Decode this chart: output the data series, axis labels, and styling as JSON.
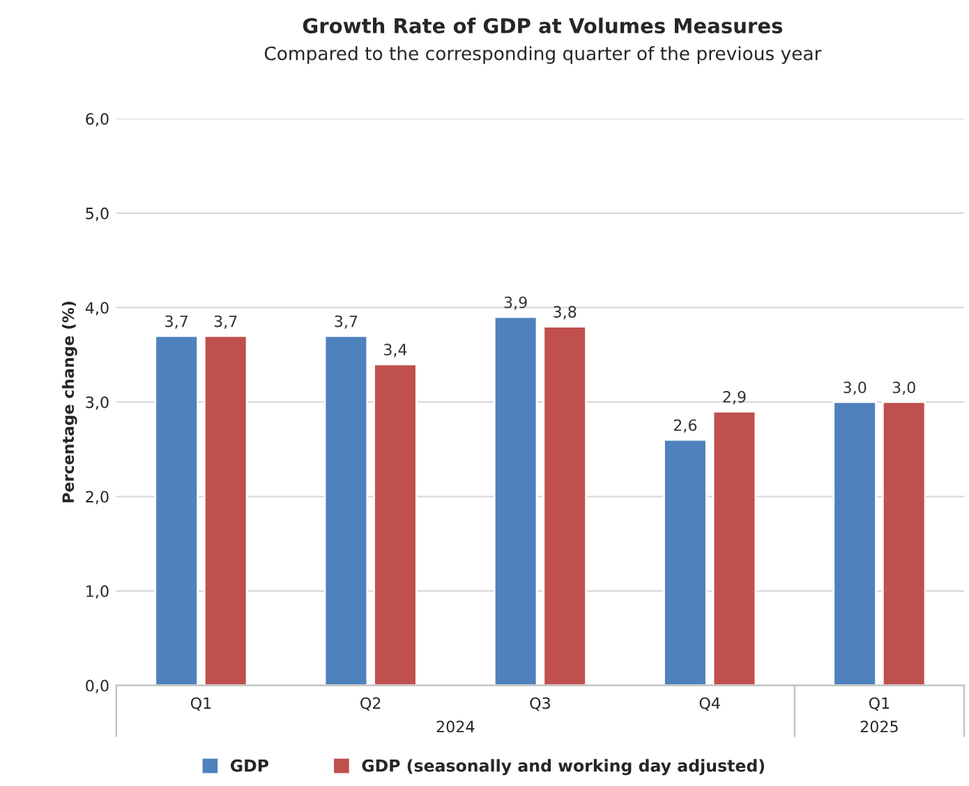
{
  "chart_data": {
    "type": "bar",
    "title": "Growth Rate of GDP at Volumes Measures",
    "subtitle": "Compared to the corresponding quarter of the previous year",
    "ylabel": "Percentage change (%)",
    "categories": [
      "Q1",
      "Q2",
      "Q3",
      "Q4",
      "Q1"
    ],
    "series": [
      {
        "name": "GDP",
        "color": "#4f81bd",
        "values": [
          3.7,
          3.7,
          3.9,
          2.6,
          3.0
        ],
        "value_labels": [
          "3,7",
          "3,7",
          "3,9",
          "2,6",
          "3,0"
        ]
      },
      {
        "name": "GDP (seasonally and working day adjusted)",
        "color": "#c0504d",
        "values": [
          3.7,
          3.4,
          3.8,
          2.9,
          3.0
        ],
        "value_labels": [
          "3,7",
          "3,4",
          "3,8",
          "2,9",
          "3,0"
        ]
      }
    ],
    "ylim": [
      0,
      6
    ],
    "yticks": [
      {
        "value": 0,
        "label": "0,0"
      },
      {
        "value": 1,
        "label": "1,0"
      },
      {
        "value": 2,
        "label": "2,0"
      },
      {
        "value": 3,
        "label": "3,0"
      },
      {
        "value": 4,
        "label": "4,0"
      },
      {
        "value": 5,
        "label": "5,0"
      },
      {
        "value": 6,
        "label": "6,0"
      }
    ],
    "grid": "y",
    "legend": "bottom",
    "annotations": [
      "2024",
      "2025"
    ]
  }
}
